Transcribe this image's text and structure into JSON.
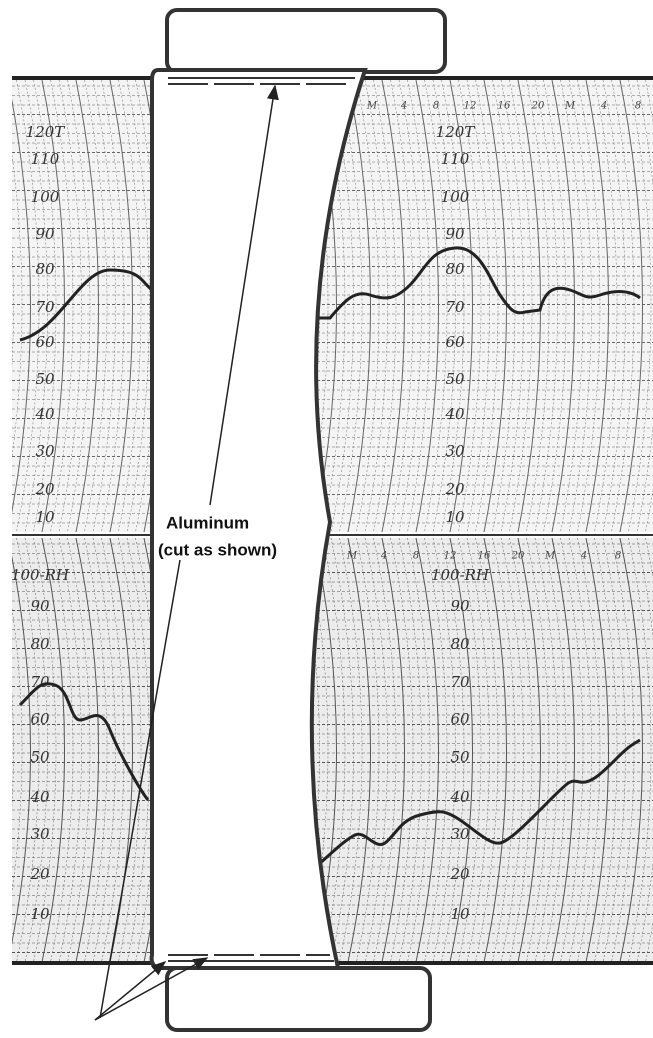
{
  "callout": {
    "line1": "Aluminum",
    "line2": "(cut as shown)"
  },
  "upper_chart": {
    "scale_labels": [
      "120T",
      "110",
      "100",
      "90",
      "80",
      "70",
      "60",
      "50",
      "40",
      "30",
      "20",
      "10"
    ]
  },
  "lower_chart": {
    "scale_labels": [
      "100-RH",
      "90",
      "80",
      "70",
      "60",
      "50",
      "40",
      "30",
      "20",
      "10"
    ]
  },
  "hour_labels": [
    "M",
    "4",
    "8",
    "12",
    "16",
    "20",
    "M",
    "4",
    "8"
  ]
}
